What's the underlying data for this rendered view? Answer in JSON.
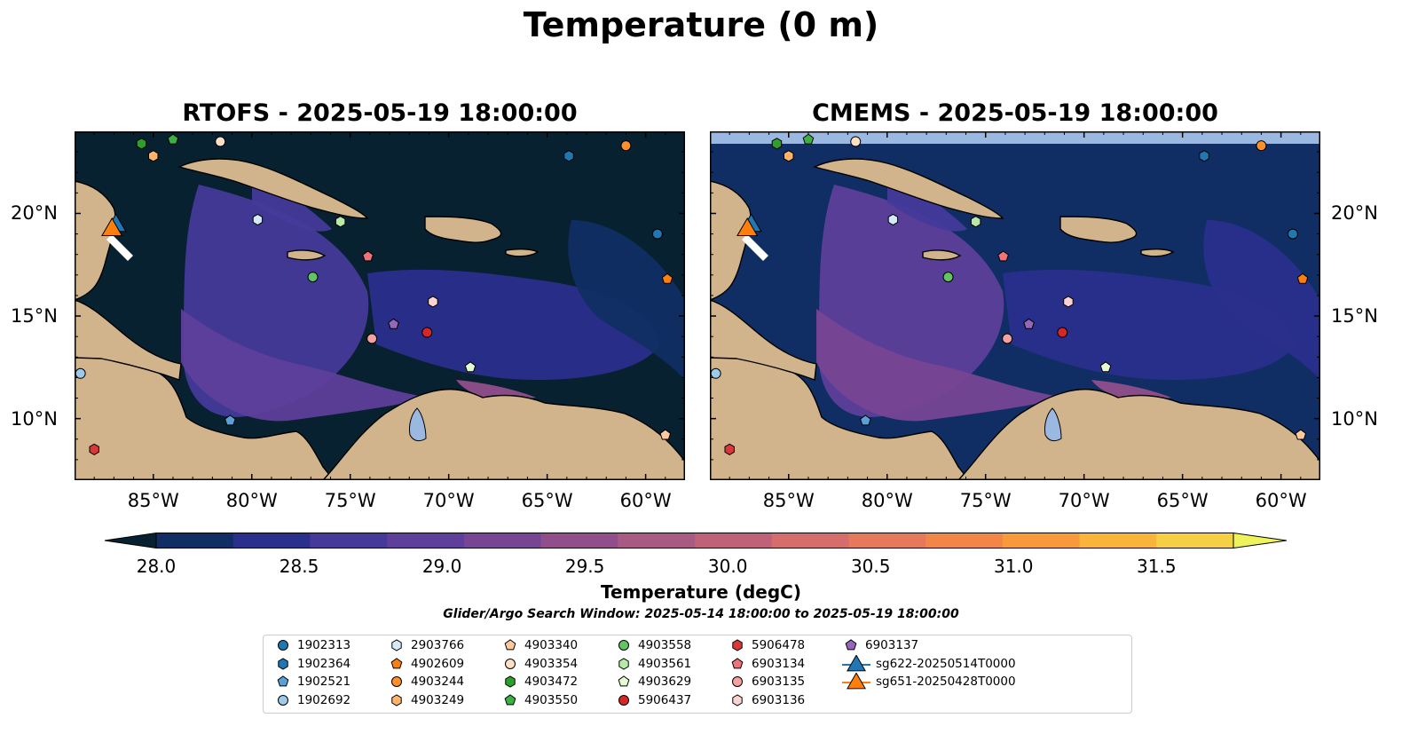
{
  "suptitle": "Temperature (0 m)",
  "panels": [
    {
      "title": "RTOFS - 2025-05-19 18:00:00",
      "model": "RTOFS"
    },
    {
      "title": "CMEMS - 2025-05-19 18:00:00",
      "model": "CMEMS"
    }
  ],
  "axes": {
    "lon_ticks": [
      "85°W",
      "80°W",
      "75°W",
      "70°W",
      "65°W",
      "60°W"
    ],
    "lat_ticks": [
      "20°N",
      "15°N",
      "10°N"
    ],
    "lon_range": [
      -89,
      -58
    ],
    "lat_range": [
      7,
      24
    ]
  },
  "colorbar": {
    "label": "Temperature (degC)",
    "ticks": [
      "28.0",
      "28.5",
      "29.0",
      "29.5",
      "30.0",
      "30.5",
      "31.0",
      "31.5"
    ],
    "range": [
      28.0,
      31.5
    ],
    "colors": [
      "#082131",
      "#102e63",
      "#2a2f8c",
      "#453a9a",
      "#5e3f9a",
      "#774693",
      "#904f8b",
      "#a85a82",
      "#c0617a",
      "#d56d6c",
      "#e6785c",
      "#f28649",
      "#f89a3c",
      "#f9b43a",
      "#f5d045",
      "#eef35c"
    ],
    "extend": "both"
  },
  "search_window": "Glider/Argo Search Window: 2025-05-14 18:00:00 to 2025-05-19 18:00:00",
  "legend": [
    {
      "id": "1902313",
      "marker": "circle",
      "color": "#1f77b4"
    },
    {
      "id": "1902364",
      "marker": "hexagon",
      "color": "#1f77b4"
    },
    {
      "id": "1902521",
      "marker": "pentagon",
      "color": "#5aa0d8"
    },
    {
      "id": "1902692",
      "marker": "circle",
      "color": "#9ecae9"
    },
    {
      "id": "2903766",
      "marker": "hexagon",
      "color": "#d5eaf8"
    },
    {
      "id": "4902609",
      "marker": "pentagon",
      "color": "#ff7f0e"
    },
    {
      "id": "4903244",
      "marker": "circle",
      "color": "#ff8f2a"
    },
    {
      "id": "4903249",
      "marker": "hexagon",
      "color": "#ffb36b"
    },
    {
      "id": "4903340",
      "marker": "pentagon",
      "color": "#ffc9a0"
    },
    {
      "id": "4903354",
      "marker": "circle",
      "color": "#ffe0c6"
    },
    {
      "id": "4903472",
      "marker": "hexagon",
      "color": "#2ca02c"
    },
    {
      "id": "4903550",
      "marker": "pentagon",
      "color": "#3cb043"
    },
    {
      "id": "4903558",
      "marker": "circle",
      "color": "#62c462"
    },
    {
      "id": "4903561",
      "marker": "hexagon",
      "color": "#b6eaa8"
    },
    {
      "id": "4903629",
      "marker": "pentagon",
      "color": "#e4fbd2"
    },
    {
      "id": "5906437",
      "marker": "circle",
      "color": "#d62728"
    },
    {
      "id": "5906478",
      "marker": "hexagon",
      "color": "#d9383a"
    },
    {
      "id": "6903134",
      "marker": "pentagon",
      "color": "#f0737a"
    },
    {
      "id": "6903135",
      "marker": "circle",
      "color": "#f7a0a1"
    },
    {
      "id": "6903136",
      "marker": "hexagon",
      "color": "#fdd2d2"
    },
    {
      "id": "6903137",
      "marker": "pentagon",
      "color": "#9467bd"
    },
    {
      "id": "sg622-20250514T0000",
      "marker": "triangle",
      "color": "#1f77b4"
    },
    {
      "id": "sg651-20250428T0000",
      "marker": "triangle",
      "color": "#ff7f0e"
    }
  ],
  "chart_data": {
    "type": "map",
    "variable": "Temperature",
    "depth": "0 m",
    "units": "degC",
    "observations": [
      {
        "id": "1902313",
        "lon": -59.4,
        "lat": 19.0
      },
      {
        "id": "1902364",
        "lon": -63.9,
        "lat": 22.8
      },
      {
        "id": "1902521",
        "lon": -81.1,
        "lat": 9.9
      },
      {
        "id": "1902692",
        "lon": -88.7,
        "lat": 12.2
      },
      {
        "id": "2903766",
        "lon": -79.7,
        "lat": 19.7
      },
      {
        "id": "4902609",
        "lon": -58.9,
        "lat": 16.8
      },
      {
        "id": "4903244",
        "lon": -61.0,
        "lat": 23.3
      },
      {
        "id": "4903249",
        "lon": -85.0,
        "lat": 22.8
      },
      {
        "id": "4903340",
        "lon": -59.0,
        "lat": 9.2
      },
      {
        "id": "4903354",
        "lon": -81.6,
        "lat": 23.5
      },
      {
        "id": "4903472",
        "lon": -85.6,
        "lat": 23.4
      },
      {
        "id": "4903550",
        "lon": -84.0,
        "lat": 23.6
      },
      {
        "id": "4903558",
        "lon": -76.9,
        "lat": 16.9
      },
      {
        "id": "4903561",
        "lon": -75.5,
        "lat": 19.6
      },
      {
        "id": "4903629",
        "lon": -68.9,
        "lat": 12.5
      },
      {
        "id": "5906437",
        "lon": -71.1,
        "lat": 14.2
      },
      {
        "id": "5906478",
        "lon": -88.0,
        "lat": 8.5
      },
      {
        "id": "6903134",
        "lon": -74.1,
        "lat": 17.9
      },
      {
        "id": "6903135",
        "lon": -73.9,
        "lat": 13.9
      },
      {
        "id": "6903136",
        "lon": -70.8,
        "lat": 15.7
      },
      {
        "id": "6903137",
        "lon": -72.8,
        "lat": 14.6
      },
      {
        "id": "sg622-20250514T0000",
        "lon": -86.9,
        "lat": 19.4
      },
      {
        "id": "sg651-20250428T0000",
        "lon": -87.1,
        "lat": 19.2
      }
    ]
  }
}
